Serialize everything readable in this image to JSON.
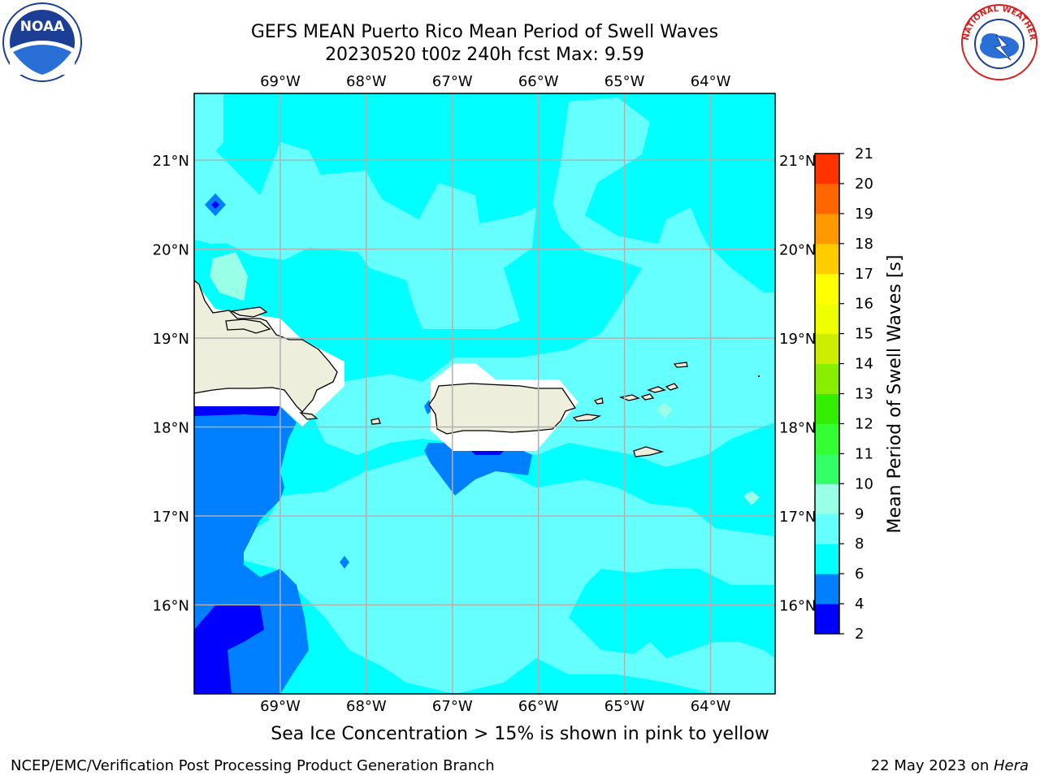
{
  "header": {
    "title_line1": "GEFS MEAN Puerto Rico Mean Period of Swell Waves",
    "title_line2": "20230520 t00z 240h fcst   Max: 9.59"
  },
  "logos": {
    "left": {
      "name": "noaa-logo",
      "text": "NOAA"
    },
    "right": {
      "name": "nws-logo",
      "text": "NATIONAL WEATHER SERVICE"
    }
  },
  "map": {
    "lon_labels": [
      "69°W",
      "68°W",
      "67°W",
      "66°W",
      "65°W",
      "64°W"
    ],
    "lat_labels": [
      "21°N",
      "20°N",
      "19°N",
      "18°N",
      "17°N",
      "16°N"
    ],
    "lon_values": [
      -69,
      -68,
      -67,
      -66,
      -65,
      -64
    ],
    "lat_values": [
      21,
      20,
      19,
      18,
      17,
      16
    ],
    "lon_range": [
      -70.0,
      -63.25
    ],
    "lat_range": [
      15.0,
      21.75
    ]
  },
  "colorbar": {
    "label": "Mean Period of Swell Waves [s]",
    "ticks": [
      "21",
      "20",
      "19",
      "18",
      "17",
      "16",
      "15",
      "14",
      "13",
      "12",
      "11",
      "10",
      "9",
      "8",
      "6",
      "4",
      "2"
    ],
    "levels": [
      2,
      4,
      6,
      8,
      9,
      10,
      11,
      12,
      13,
      14,
      15,
      16,
      17,
      18,
      19,
      20,
      21
    ],
    "colors": [
      "#0000ff",
      "#0080ff",
      "#00ffff",
      "#66ffff",
      "#99ffe6",
      "#33ff66",
      "#33ff33",
      "#33ee00",
      "#88ee00",
      "#ccee00",
      "#eeff00",
      "#ffff00",
      "#ffcc00",
      "#ff9900",
      "#ff6600",
      "#ff3300",
      "#ff0000"
    ]
  },
  "colors": {
    "land": "#eeeedc",
    "period_2_4": "#0000ff",
    "period_4_6": "#0080ff",
    "period_6_8": "#00ffff",
    "period_8_9": "#66ffff",
    "period_9_10": "#99ffe6"
  },
  "notes": {
    "ice_note": "Sea Ice Concentration > 15% is shown in pink to yellow"
  },
  "footer": {
    "left": "NCEP/EMC/Verification Post Processing Product Generation Branch",
    "date": "22 May 2023 on ",
    "machine": "Hera"
  }
}
